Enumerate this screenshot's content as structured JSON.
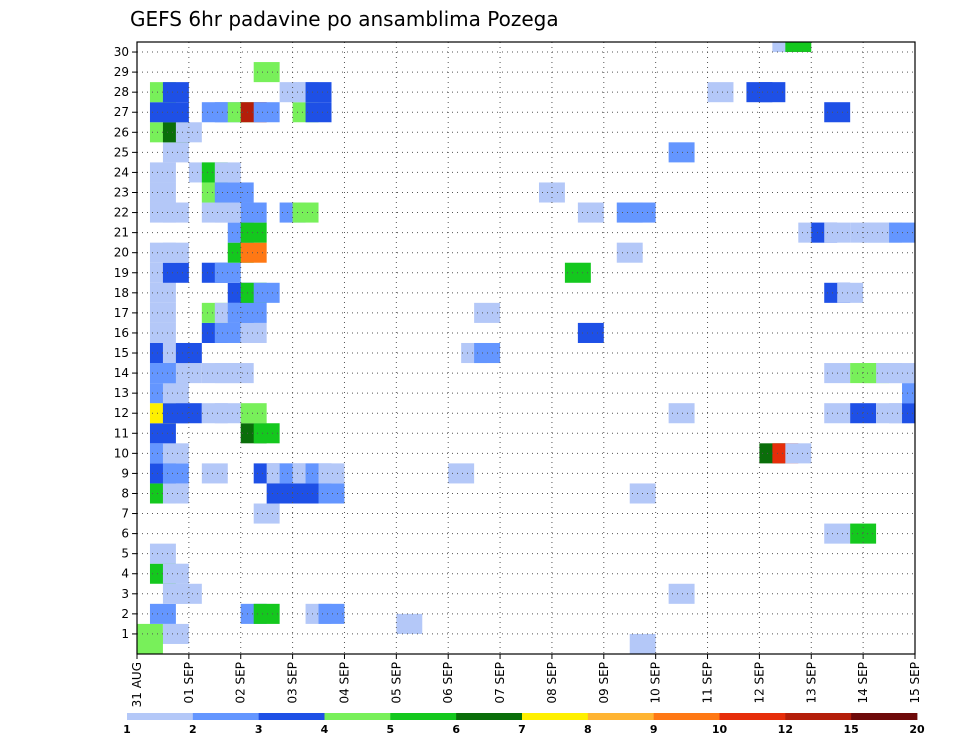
{
  "chart_data": {
    "type": "heatmap",
    "title": "GEFS 6hr padavine po ansamblima Pozega",
    "x_tick_labels": [
      "31 AUG",
      "01 SEP",
      "02 SEP",
      "03 SEP",
      "04 SEP",
      "05 SEP",
      "06 SEP",
      "07 SEP",
      "08 SEP",
      "09 SEP",
      "10 SEP",
      "11 SEP",
      "12 SEP",
      "13 SEP",
      "14 SEP",
      "15 SEP"
    ],
    "y_tick_labels": [
      "1",
      "2",
      "3",
      "4",
      "5",
      "6",
      "7",
      "8",
      "9",
      "10",
      "11",
      "12",
      "13",
      "14",
      "15",
      "16",
      "17",
      "18",
      "19",
      "20",
      "21",
      "22",
      "23",
      "24",
      "25",
      "26",
      "27",
      "28",
      "29",
      "30"
    ],
    "x_range": [
      0,
      60
    ],
    "y_range": [
      0,
      30.5
    ],
    "grid": true,
    "colorbar": {
      "labels": [
        "1",
        "2",
        "3",
        "4",
        "5",
        "6",
        "7",
        "8",
        "9",
        "10",
        "12",
        "15",
        "20"
      ],
      "colors": [
        "#b4c8f8",
        "#6496ff",
        "#1e50e6",
        "#78f05a",
        "#14c81e",
        "#0a6e0a",
        "#fff000",
        "#ffb432",
        "#ff7814",
        "#e62d0a",
        "#b41e0a",
        "#6e0a0a"
      ]
    },
    "cells": [
      [
        0.5,
        0,
        4
      ],
      [
        1.5,
        0,
        1
      ],
      [
        1,
        1,
        2
      ],
      [
        2,
        2,
        1
      ],
      [
        4.5,
        1,
        2
      ],
      [
        5,
        1,
        5
      ],
      [
        7,
        1,
        1
      ],
      [
        7.5,
        1,
        2
      ],
      [
        10.5,
        0.5,
        1
      ],
      [
        1.5,
        2,
        1
      ],
      [
        21,
        2,
        1
      ],
      [
        1,
        3,
        5
      ],
      [
        1.5,
        3,
        1
      ],
      [
        1,
        4,
        1
      ],
      [
        27,
        5,
        1
      ],
      [
        28,
        5,
        5
      ],
      [
        5,
        6,
        1
      ],
      [
        1,
        7,
        5
      ],
      [
        1.5,
        7,
        1
      ],
      [
        5.5,
        7,
        3
      ],
      [
        6,
        7,
        3
      ],
      [
        6.5,
        7,
        3
      ],
      [
        7,
        7,
        3
      ],
      [
        7.5,
        7,
        2
      ],
      [
        19.5,
        7,
        1
      ],
      [
        1,
        8,
        3
      ],
      [
        1.5,
        8,
        2
      ],
      [
        3,
        8,
        1
      ],
      [
        5,
        8,
        3
      ],
      [
        5.5,
        8,
        1
      ],
      [
        6,
        8,
        2
      ],
      [
        6.5,
        8,
        1
      ],
      [
        7,
        8,
        2
      ],
      [
        7.5,
        8,
        1
      ],
      [
        12.5,
        8,
        1
      ],
      [
        1,
        9,
        2
      ],
      [
        1.5,
        9,
        1
      ],
      [
        24.5,
        9,
        6
      ],
      [
        25,
        9,
        10
      ],
      [
        25.5,
        9,
        1
      ],
      [
        1,
        10,
        3
      ],
      [
        4.5,
        10,
        6
      ],
      [
        5,
        10,
        5
      ],
      [
        1,
        11,
        7
      ],
      [
        1.5,
        11,
        3
      ],
      [
        2,
        11,
        3
      ],
      [
        3,
        11,
        1
      ],
      [
        3.5,
        11,
        1
      ],
      [
        4.5,
        11,
        4
      ],
      [
        21,
        11,
        1
      ],
      [
        27,
        11,
        1
      ],
      [
        28,
        11,
        3
      ],
      [
        29,
        11,
        1
      ],
      [
        29.5,
        11,
        1
      ],
      [
        30,
        11,
        3
      ],
      [
        30.5,
        11,
        1
      ],
      [
        1,
        12,
        2
      ],
      [
        1.5,
        12,
        1
      ],
      [
        30,
        12,
        2
      ],
      [
        30.5,
        12,
        6
      ],
      [
        1,
        13,
        2
      ],
      [
        1.5,
        13,
        2
      ],
      [
        2,
        13,
        1
      ],
      [
        3,
        13,
        1
      ],
      [
        3.5,
        13,
        1
      ],
      [
        4,
        13,
        1
      ],
      [
        27,
        13,
        1
      ],
      [
        28,
        13,
        4
      ],
      [
        28.5,
        13,
        4
      ],
      [
        29,
        13,
        1
      ],
      [
        29.5,
        13,
        1
      ],
      [
        1,
        14,
        3
      ],
      [
        1.5,
        14,
        1
      ],
      [
        2,
        14,
        3
      ],
      [
        13,
        14,
        1
      ],
      [
        13.5,
        14,
        2
      ],
      [
        1,
        15,
        1
      ],
      [
        3,
        15,
        3
      ],
      [
        3.5,
        15,
        2
      ],
      [
        4.5,
        15,
        1
      ],
      [
        17.5,
        15,
        3
      ],
      [
        1,
        16,
        1
      ],
      [
        3,
        16,
        4
      ],
      [
        3.5,
        16,
        1
      ],
      [
        4,
        16,
        2
      ],
      [
        4.5,
        16,
        2
      ],
      [
        13.5,
        16,
        1
      ],
      [
        1,
        17,
        1
      ],
      [
        4,
        17,
        3
      ],
      [
        4.5,
        17,
        5
      ],
      [
        5,
        17,
        2
      ],
      [
        27,
        17,
        3
      ],
      [
        27.5,
        17,
        1
      ],
      [
        1,
        18,
        1
      ],
      [
        1.5,
        18,
        3
      ],
      [
        3,
        18,
        3
      ],
      [
        3.5,
        18,
        2
      ],
      [
        17,
        18,
        5
      ],
      [
        1,
        19,
        1
      ],
      [
        1.5,
        19,
        1
      ],
      [
        4,
        19,
        5
      ],
      [
        4.5,
        19,
        9
      ],
      [
        19,
        19,
        1
      ],
      [
        4,
        20,
        2
      ],
      [
        4.5,
        20,
        5
      ],
      [
        26,
        20,
        1
      ],
      [
        26.5,
        20,
        3
      ],
      [
        27,
        20,
        1
      ],
      [
        28,
        20,
        1
      ],
      [
        28.5,
        20,
        1
      ],
      [
        29,
        20,
        1
      ],
      [
        29.5,
        20,
        2
      ],
      [
        1,
        21,
        1
      ],
      [
        1.5,
        21,
        1
      ],
      [
        3,
        21,
        1
      ],
      [
        3.5,
        21,
        1
      ],
      [
        4.5,
        21,
        2
      ],
      [
        6,
        21,
        2
      ],
      [
        6.5,
        21,
        4
      ],
      [
        17.5,
        21,
        1
      ],
      [
        19,
        21,
        2
      ],
      [
        19.5,
        21,
        2
      ],
      [
        1,
        22,
        1
      ],
      [
        3,
        22,
        4
      ],
      [
        3.5,
        22,
        2
      ],
      [
        4,
        22,
        2
      ],
      [
        16,
        22,
        1
      ],
      [
        1,
        23,
        1
      ],
      [
        2.5,
        23,
        1
      ],
      [
        3,
        23,
        5
      ],
      [
        3.5,
        23,
        1
      ],
      [
        1.5,
        24,
        1
      ],
      [
        21,
        24,
        2
      ],
      [
        1,
        25,
        4
      ],
      [
        1.5,
        25,
        6
      ],
      [
        2,
        25,
        1
      ],
      [
        1,
        26,
        3
      ],
      [
        1.5,
        26,
        3
      ],
      [
        3,
        26,
        2
      ],
      [
        3.5,
        26,
        2
      ],
      [
        4,
        26,
        4
      ],
      [
        4.5,
        26,
        11
      ],
      [
        5,
        26,
        2
      ],
      [
        6.5,
        26,
        4
      ],
      [
        7,
        26,
        3
      ],
      [
        27,
        26,
        3
      ],
      [
        1,
        27,
        4
      ],
      [
        1.5,
        27,
        3
      ],
      [
        6,
        27,
        1
      ],
      [
        6.5,
        27,
        1
      ],
      [
        7,
        27,
        3
      ],
      [
        22.5,
        27,
        1
      ],
      [
        24,
        27,
        3
      ],
      [
        24.5,
        27,
        3
      ],
      [
        5,
        28,
        4
      ],
      [
        25,
        29.5,
        1
      ],
      [
        25.5,
        29.5,
        5
      ],
      [
        19.5,
        -0.5,
        1
      ],
      [
        0.5,
        -0.5,
        4
      ]
    ]
  }
}
